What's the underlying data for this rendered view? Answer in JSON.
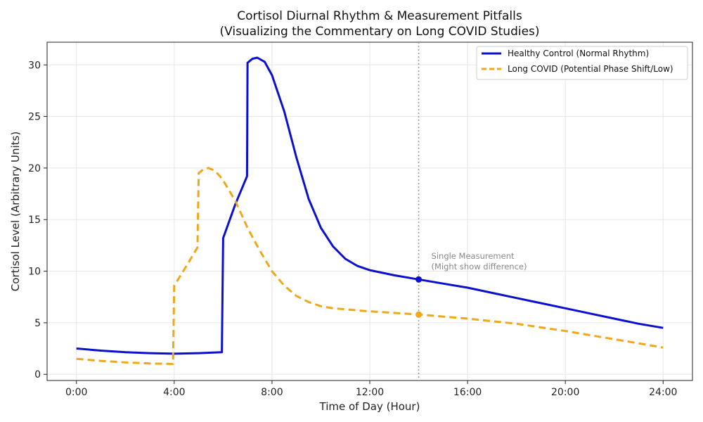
{
  "chart_data": {
    "type": "line",
    "title": "Cortisol Diurnal Rhythm & Measurement Pitfalls",
    "subtitle": "(Visualizing the Commentary on Long COVID Studies)",
    "xlabel": "Time of Day (Hour)",
    "ylabel": "Cortisol Level (Arbitrary Units)",
    "xlim": [
      -1.2,
      25.2
    ],
    "ylim": [
      -0.6,
      32.2
    ],
    "x_ticks": [
      0,
      4,
      8,
      12,
      16,
      20,
      24
    ],
    "x_tick_labels": [
      "0:00",
      "4:00",
      "8:00",
      "12:00",
      "16:00",
      "20:00",
      "24:00"
    ],
    "y_ticks": [
      0,
      5,
      10,
      15,
      20,
      25,
      30
    ],
    "y_tick_labels": [
      "0",
      "5",
      "10",
      "15",
      "20",
      "25",
      "30"
    ],
    "grid": true,
    "legend_position": "top-right",
    "series": [
      {
        "name": "Healthy Control (Normal Rhythm)",
        "color": "#0a0fd0",
        "style": "solid",
        "x": [
          0,
          1,
          2,
          3,
          4,
          5,
          5.95,
          6.0,
          6.5,
          6.98,
          7.0,
          7.2,
          7.4,
          7.7,
          8.0,
          8.5,
          9.0,
          9.5,
          10.0,
          10.5,
          11.0,
          11.5,
          12.0,
          13.0,
          14.0,
          15,
          16,
          17,
          18,
          19,
          20,
          21,
          22,
          23,
          24
        ],
        "y": [
          2.5,
          2.3,
          2.15,
          2.05,
          2.0,
          2.05,
          2.15,
          13.2,
          16.5,
          19.2,
          30.2,
          30.6,
          30.7,
          30.3,
          29.0,
          25.5,
          21.0,
          17.0,
          14.2,
          12.4,
          11.2,
          10.5,
          10.1,
          9.6,
          9.2,
          8.8,
          8.4,
          7.9,
          7.4,
          6.9,
          6.4,
          5.9,
          5.4,
          4.9,
          4.5
        ]
      },
      {
        "name": "Long COVID (Potential Phase Shift/Low)",
        "color": "#f0a81a",
        "style": "dashed",
        "x": [
          0,
          1,
          2,
          3,
          3.95,
          4.0,
          4.5,
          4.95,
          5.0,
          5.2,
          5.4,
          5.6,
          5.8,
          6.0,
          6.5,
          7.0,
          7.5,
          8.0,
          8.5,
          9.0,
          9.5,
          10.0,
          10.5,
          11.0,
          12.0,
          13.0,
          14.0,
          15,
          16,
          17,
          18,
          19,
          20,
          21,
          22,
          23,
          24
        ],
        "y": [
          1.5,
          1.3,
          1.15,
          1.05,
          1.0,
          8.6,
          10.5,
          12.3,
          19.5,
          19.9,
          20.0,
          19.8,
          19.4,
          18.8,
          16.8,
          14.2,
          12.0,
          10.0,
          8.6,
          7.6,
          7.0,
          6.6,
          6.4,
          6.3,
          6.1,
          5.95,
          5.8,
          5.6,
          5.4,
          5.15,
          4.9,
          4.55,
          4.2,
          3.8,
          3.4,
          3.0,
          2.6
        ]
      }
    ],
    "annotation": {
      "x": 14,
      "lines": [
        "Single Measurement",
        "(Might show difference)"
      ],
      "markers": [
        {
          "x": 14,
          "y": 9.2,
          "color": "#0a0fd0"
        },
        {
          "x": 14,
          "y": 5.8,
          "color": "#f0a81a"
        }
      ]
    }
  }
}
